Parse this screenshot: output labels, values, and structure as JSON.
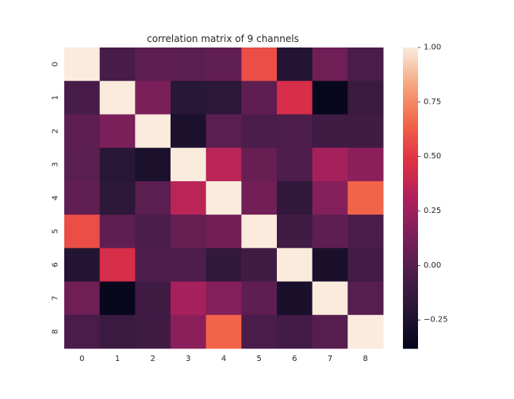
{
  "chart_data": {
    "type": "heatmap",
    "title": "correlation matrix of 9 channels",
    "xlabel": "",
    "ylabel": "",
    "x_categories": [
      "0",
      "1",
      "2",
      "3",
      "4",
      "5",
      "6",
      "7",
      "8"
    ],
    "y_categories": [
      "0",
      "1",
      "2",
      "3",
      "4",
      "5",
      "6",
      "7",
      "8"
    ],
    "values": [
      [
        1.0,
        -0.06,
        0.03,
        0.02,
        0.04,
        0.58,
        -0.22,
        0.09,
        -0.05
      ],
      [
        -0.06,
        1.0,
        0.13,
        -0.2,
        -0.18,
        0.03,
        0.45,
        -0.36,
        -0.12
      ],
      [
        0.03,
        0.13,
        1.0,
        -0.26,
        0.02,
        -0.04,
        -0.03,
        -0.09,
        -0.09
      ],
      [
        0.02,
        -0.2,
        -0.26,
        1.0,
        0.35,
        0.06,
        -0.03,
        0.28,
        0.19
      ],
      [
        0.04,
        -0.18,
        0.02,
        0.35,
        1.0,
        0.1,
        -0.16,
        0.16,
        0.65
      ],
      [
        0.58,
        0.03,
        -0.04,
        0.06,
        0.1,
        1.0,
        -0.09,
        0.03,
        -0.05
      ],
      [
        -0.22,
        0.45,
        -0.03,
        -0.03,
        -0.16,
        -0.09,
        1.0,
        -0.27,
        -0.08
      ],
      [
        0.09,
        -0.36,
        -0.09,
        0.28,
        0.16,
        0.03,
        -0.27,
        1.0,
        0.0
      ],
      [
        -0.05,
        -0.12,
        -0.09,
        0.19,
        0.65,
        -0.05,
        -0.08,
        0.0,
        1.0
      ]
    ],
    "colorscale": "rocket",
    "vmin": -0.38,
    "vmax": 1.0,
    "colorbar_ticks": [
      -0.25,
      0.0,
      0.25,
      0.5,
      0.75,
      1.0
    ],
    "colorbar_tick_labels": [
      "−0.25",
      "0.00",
      "0.25",
      "0.50",
      "0.75",
      "1.00"
    ],
    "grid": false,
    "legend": "colorbar-right"
  }
}
